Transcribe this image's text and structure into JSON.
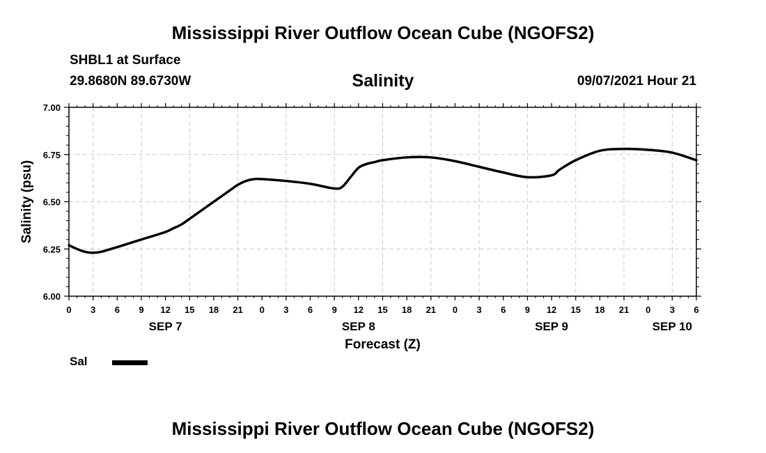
{
  "header": {
    "title": "Mississippi River Outflow Ocean Cube (NGOFS2)",
    "station": "SHBL1 at Surface",
    "coords": "29.8680N  89.6730W",
    "variable": "Salinity",
    "datetime": "09/07/2021 Hour 21"
  },
  "footer": {
    "title": "Mississippi River Outflow Ocean Cube (NGOFS2)"
  },
  "legend": {
    "label": "Sal"
  },
  "chart_data": {
    "type": "line",
    "title": "Salinity",
    "xlabel": "Forecast (Z)",
    "ylabel": "Salinity (psu)",
    "ylim": [
      6.0,
      7.0
    ],
    "yticks": [
      "6.00",
      "6.25",
      "6.50",
      "6.75",
      "7.00"
    ],
    "xlim_hours": [
      0,
      78
    ],
    "xtick_labels": [
      "0",
      "3",
      "6",
      "9",
      "12",
      "15",
      "18",
      "21",
      "0",
      "3",
      "6",
      "9",
      "12",
      "15",
      "18",
      "21",
      "0",
      "3",
      "6",
      "9",
      "12",
      "15",
      "18",
      "21",
      "0",
      "3",
      "6"
    ],
    "day_labels": [
      {
        "label": "SEP 7",
        "hour": 12
      },
      {
        "label": "SEP 8",
        "hour": 36
      },
      {
        "label": "SEP 9",
        "hour": 60
      },
      {
        "label": "SEP 10",
        "hour": 75
      }
    ],
    "grid": true,
    "series": [
      {
        "name": "Sal",
        "color": "#000000",
        "x": [
          0,
          1,
          2,
          3,
          4,
          6,
          9,
          12,
          13,
          14,
          15,
          17,
          18,
          20,
          21,
          22,
          23,
          24,
          27,
          30,
          33,
          34,
          35,
          36,
          37,
          38,
          39,
          42,
          45,
          48,
          51,
          54,
          57,
          60,
          61,
          63,
          66,
          69,
          72,
          75,
          78
        ],
        "values": [
          6.27,
          6.25,
          6.235,
          6.23,
          6.235,
          6.26,
          6.3,
          6.34,
          6.36,
          6.38,
          6.41,
          6.47,
          6.5,
          6.56,
          6.59,
          6.61,
          6.62,
          6.62,
          6.61,
          6.595,
          6.57,
          6.58,
          6.63,
          6.68,
          6.7,
          6.71,
          6.72,
          6.735,
          6.735,
          6.715,
          6.685,
          6.655,
          6.63,
          6.64,
          6.67,
          6.72,
          6.77,
          6.78,
          6.775,
          6.76,
          6.72
        ]
      }
    ]
  }
}
